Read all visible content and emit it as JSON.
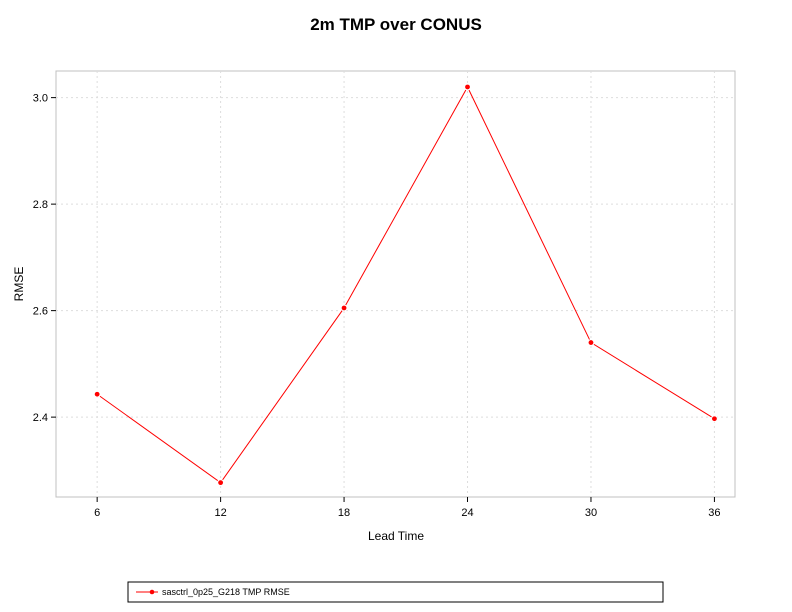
{
  "chart_data": {
    "type": "line",
    "title": "2m TMP over CONUS",
    "xlabel": "Lead Time",
    "ylabel": "RMSE",
    "x": [
      6,
      12,
      18,
      24,
      30,
      36
    ],
    "xticks": [
      "6",
      "12",
      "18",
      "24",
      "30",
      "36"
    ],
    "yticks": [
      "2.4",
      "2.6",
      "2.8",
      "3.0"
    ],
    "ytick_values": [
      2.4,
      2.6,
      2.8,
      3.0
    ],
    "xlim": [
      4,
      37
    ],
    "ylim": [
      2.25,
      3.05
    ],
    "grid": true,
    "legend_position": "bottom",
    "series": [
      {
        "name": "sasctrl_0p25_G218 TMP RMSE",
        "color": "#ff0000",
        "values": [
          2.443,
          2.277,
          2.605,
          3.02,
          2.54,
          2.397
        ]
      }
    ]
  }
}
